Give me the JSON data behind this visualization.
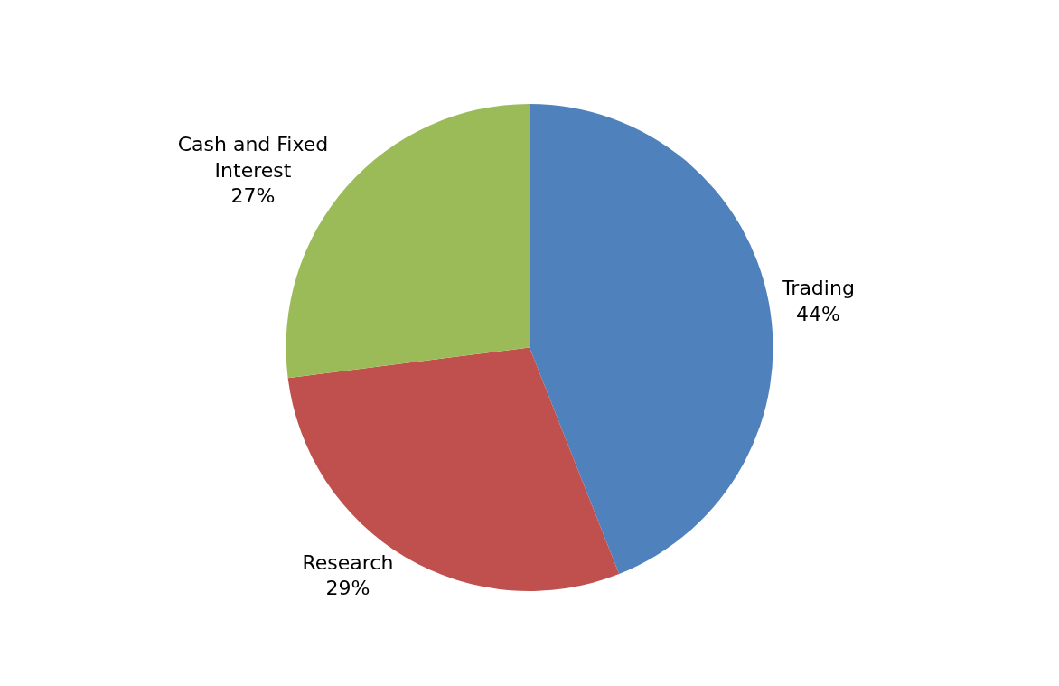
{
  "chart_data": {
    "type": "pie",
    "categories": [
      "Trading",
      "Research",
      "Cash and Fixed Interest"
    ],
    "values": [
      44,
      29,
      27
    ],
    "value_labels": [
      "44%",
      "29%",
      "27%"
    ],
    "colors": [
      "#4f81bd",
      "#c0504d",
      "#9bbb59"
    ],
    "legend": false
  }
}
